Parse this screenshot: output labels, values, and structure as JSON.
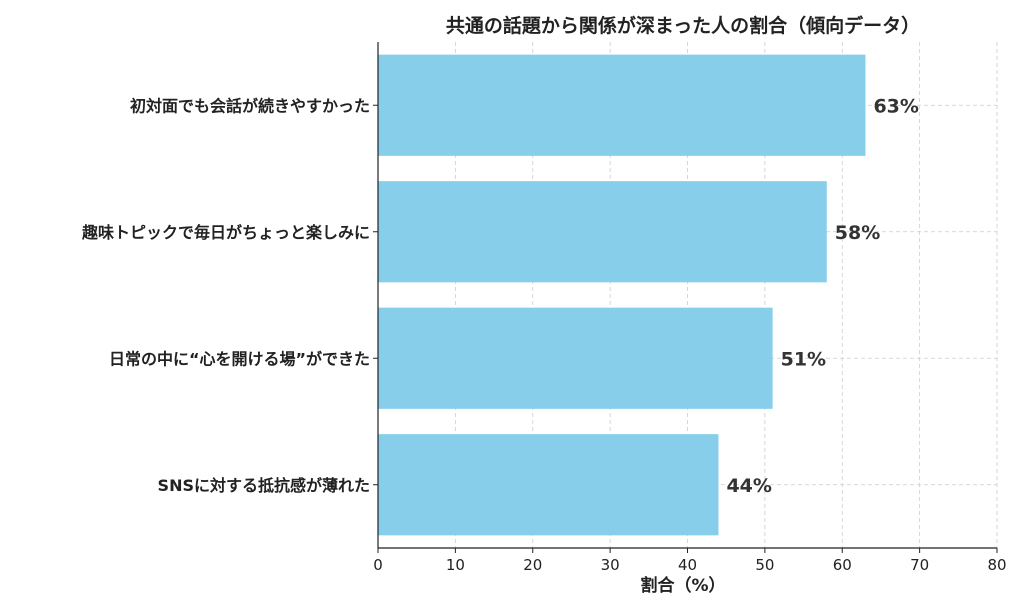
{
  "chart_data": {
    "type": "bar",
    "orientation": "horizontal",
    "title": "共通の話題から関係が深まった人の割合（傾向データ）",
    "xlabel": "割合（%）",
    "ylabel": "",
    "categories": [
      "初対面でも会話が続きやすかった",
      "趣味トピックで毎日がちょっと楽しみに",
      "日常の中に“心を開ける場”ができた",
      "SNSに対する抵抗感が薄れた"
    ],
    "values": [
      63,
      58,
      51,
      44
    ],
    "data_labels": [
      "63%",
      "58%",
      "51%",
      "44%"
    ],
    "xlim": [
      0,
      80
    ],
    "x_ticks": [
      "0",
      "10",
      "20",
      "30",
      "40",
      "50",
      "60",
      "70",
      "80"
    ],
    "grid": true,
    "bar_color": "#87ceeb",
    "grid_color": "#cccccc",
    "axis_color": "#222222"
  }
}
